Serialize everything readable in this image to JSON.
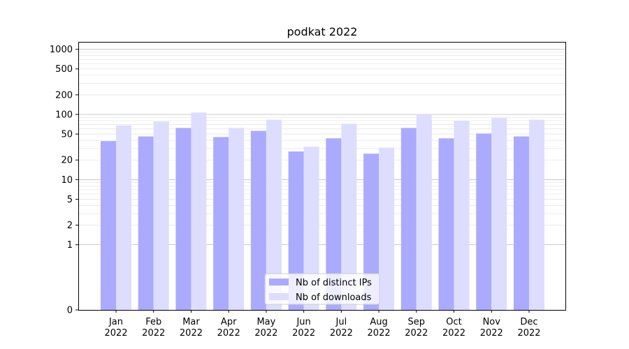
{
  "chart_data": {
    "type": "bar",
    "title": "podkat 2022",
    "categories": [
      "Jan\n2022",
      "Feb\n2022",
      "Mar\n2022",
      "Apr\n2022",
      "May\n2022",
      "Jun\n2022",
      "Jul\n2022",
      "Aug\n2022",
      "Sep\n2022",
      "Oct\n2022",
      "Nov\n2022",
      "Dec\n2022"
    ],
    "series": [
      {
        "name": "Nb of distinct IPs",
        "color": "#aaaaff",
        "values": [
          39,
          46,
          62,
          45,
          56,
          27,
          43,
          25,
          62,
          43,
          51,
          46
        ]
      },
      {
        "name": "Nb of downloads",
        "color": "#ddddff",
        "values": [
          68,
          78,
          107,
          62,
          83,
          32,
          72,
          31,
          100,
          80,
          88,
          83
        ]
      }
    ],
    "y_scale": "symlog",
    "y_ticks": [
      0,
      1,
      2,
      5,
      10,
      20,
      50,
      100,
      200,
      500,
      1000
    ],
    "ylim": [
      0,
      1300
    ],
    "legend_position": "lower center",
    "grid": "horizontal"
  }
}
